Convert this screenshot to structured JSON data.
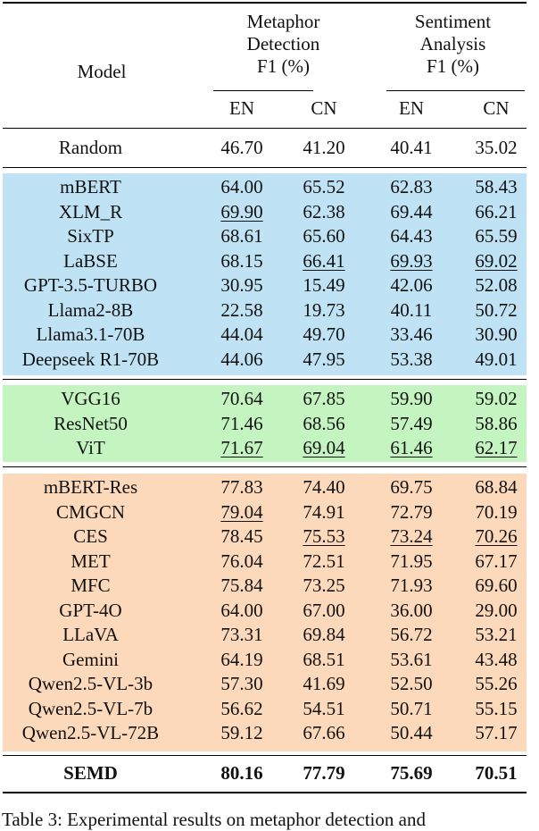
{
  "header": {
    "model": "Model",
    "group1": [
      "Metaphor",
      "Detection",
      "F1 (%)"
    ],
    "group2": [
      "Sentiment",
      "Analysis",
      "F1 (%)"
    ],
    "lang": [
      "EN",
      "CN",
      "EN",
      "CN"
    ]
  },
  "random": {
    "model": "Random",
    "values": [
      "46.70",
      "41.20",
      "40.41",
      "35.02"
    ]
  },
  "colors": {
    "text_group": "#bfe3f4",
    "image_group": "#c4f5c0",
    "multimodal_group": "#fdd9bb"
  },
  "groups": [
    {
      "name": "text",
      "rows": [
        {
          "model": "mBERT",
          "values": [
            "64.00",
            "65.52",
            "62.83",
            "58.43"
          ],
          "underline": []
        },
        {
          "model": "XLM_R",
          "values": [
            "69.90",
            "62.38",
            "69.44",
            "66.21"
          ],
          "underline": [
            0
          ]
        },
        {
          "model": "SixTP",
          "values": [
            "68.61",
            "65.60",
            "64.43",
            "65.59"
          ],
          "underline": []
        },
        {
          "model": "LaBSE",
          "values": [
            "68.15",
            "66.41",
            "69.93",
            "69.02"
          ],
          "underline": [
            1,
            2,
            3
          ]
        },
        {
          "model": "GPT-3.5-TURBO",
          "values": [
            "30.95",
            "15.49",
            "42.06",
            "52.08"
          ],
          "underline": []
        },
        {
          "model": "Llama2-8B",
          "values": [
            "22.58",
            "19.73",
            "40.11",
            "50.72"
          ],
          "underline": []
        },
        {
          "model": "Llama3.1-70B",
          "values": [
            "44.04",
            "49.70",
            "33.46",
            "30.90"
          ],
          "underline": []
        },
        {
          "model": "Deepseek R1-70B",
          "values": [
            "44.06",
            "47.95",
            "53.38",
            "49.01"
          ],
          "underline": []
        }
      ]
    },
    {
      "name": "image",
      "rows": [
        {
          "model": "VGG16",
          "values": [
            "70.64",
            "67.85",
            "59.90",
            "59.02"
          ],
          "underline": []
        },
        {
          "model": "ResNet50",
          "values": [
            "71.46",
            "68.56",
            "57.49",
            "58.86"
          ],
          "underline": []
        },
        {
          "model": "ViT",
          "values": [
            "71.67",
            "69.04",
            "61.46",
            "62.17"
          ],
          "underline": [
            0,
            1,
            2,
            3
          ]
        }
      ]
    },
    {
      "name": "multimodal",
      "rows": [
        {
          "model": "mBERT-Res",
          "values": [
            "77.83",
            "74.40",
            "69.75",
            "68.84"
          ],
          "underline": []
        },
        {
          "model": "CMGCN",
          "values": [
            "79.04",
            "74.91",
            "72.79",
            "70.19"
          ],
          "underline": [
            0
          ]
        },
        {
          "model": "CES",
          "values": [
            "78.45",
            "75.53",
            "73.24",
            "70.26"
          ],
          "underline": [
            1,
            2,
            3
          ]
        },
        {
          "model": "MET",
          "values": [
            "76.04",
            "72.51",
            "71.95",
            "67.17"
          ],
          "underline": []
        },
        {
          "model": "MFC",
          "values": [
            "75.84",
            "73.25",
            "71.93",
            "69.60"
          ],
          "underline": []
        },
        {
          "model": "GPT-4O",
          "values": [
            "64.00",
            "67.00",
            "36.00",
            "29.00"
          ],
          "underline": []
        },
        {
          "model": "LLaVA",
          "values": [
            "73.31",
            "69.84",
            "56.72",
            "53.21"
          ],
          "underline": []
        },
        {
          "model": "Gemini",
          "values": [
            "64.19",
            "68.51",
            "53.61",
            "43.48"
          ],
          "underline": []
        },
        {
          "model": "Qwen2.5-VL-3b",
          "values": [
            "57.30",
            "41.69",
            "52.50",
            "55.26"
          ],
          "underline": []
        },
        {
          "model": "Qwen2.5-VL-7b",
          "values": [
            "56.62",
            "54.51",
            "50.71",
            "55.15"
          ],
          "underline": []
        },
        {
          "model": "Qwen2.5-VL-72B",
          "values": [
            "59.12",
            "67.66",
            "50.44",
            "57.17"
          ],
          "underline": []
        }
      ]
    }
  ],
  "best": {
    "model": "SEMD",
    "values": [
      "80.16",
      "77.79",
      "75.69",
      "70.51"
    ]
  },
  "caption": "Table 3: Experimental results on metaphor detection and"
}
